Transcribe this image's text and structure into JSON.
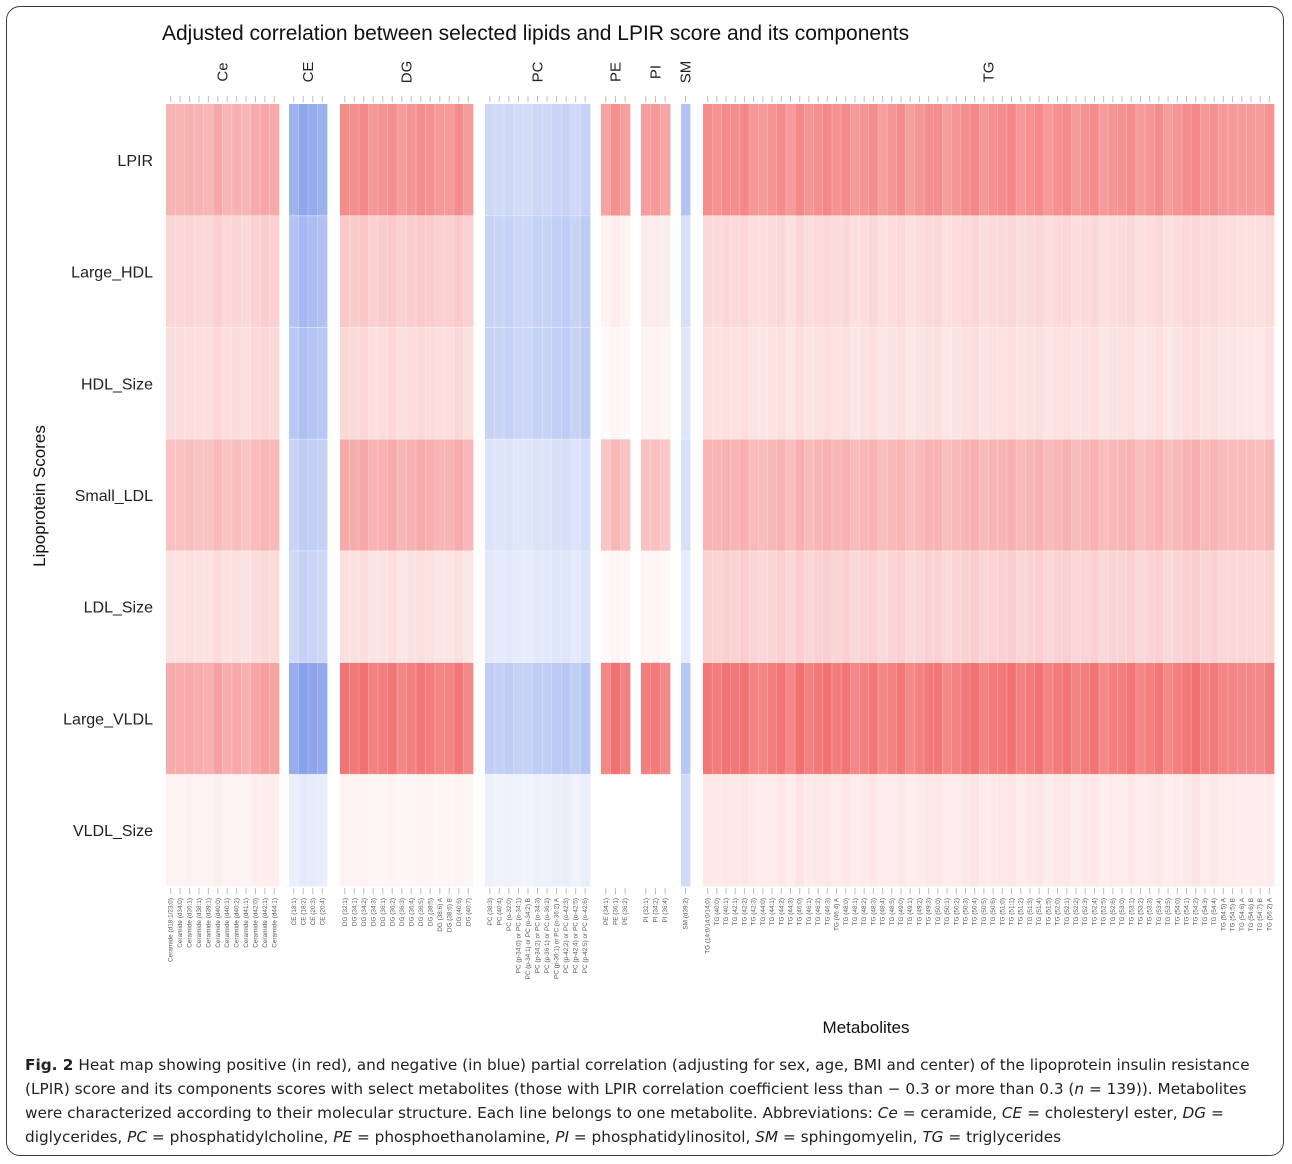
{
  "chart_data": {
    "type": "heatmap",
    "title": "Adjusted correlation between selected lipids and LPIR score and its components",
    "xlabel": "Metabolites",
    "ylabel": "Lipoprotein Scores",
    "rows": [
      "LPIR",
      "Large_HDL",
      "HDL_Size",
      "Small_LDL",
      "LDL_Size",
      "Large_VLDL",
      "VLDL_Size"
    ],
    "color_scale": {
      "negative": "#4a6fe0",
      "zero": "#ffffff",
      "positive": "#ee4a4a",
      "range": [
        -0.5,
        0.5
      ]
    },
    "groups": [
      {
        "name": "Ce",
        "metabolites": [
          "Ceramide (d18:1/23:0)",
          "Ceramide (d34:0)",
          "Ceramide (d36:1)",
          "Ceramide (d38:1)",
          "Ceramide (d39:1)",
          "Ceramide (d40:0)",
          "Ceramide (d40:1)",
          "Ceramide (d40:2)",
          "Ceramide (d41:1)",
          "Ceramide (d42:0)",
          "Ceramide (d42:1)",
          "Ceramide (d44:1)"
        ],
        "row_values": [
          0.22,
          0.12,
          0.1,
          0.18,
          0.09,
          0.24,
          0.04
        ]
      },
      {
        "name": "CE",
        "metabolites": [
          "CE (18:1)",
          "CE (18:2)",
          "CE (20:3)",
          "CE (20:4)"
        ],
        "row_values": [
          -0.28,
          -0.22,
          -0.2,
          -0.16,
          -0.14,
          -0.3,
          -0.06
        ]
      },
      {
        "name": "DG",
        "metabolites": [
          "DG (32:1)",
          "DG (34:1)",
          "DG (34:2)",
          "DG (34:3)",
          "DG (36:1)",
          "DG (36:2)",
          "DG (36:3)",
          "DG (36:4)",
          "DG (36:5)",
          "DG (38:5)",
          "DG (38:6) A",
          "DG (38:6) B",
          "DG (40:6)",
          "DG (40:7)"
        ],
        "row_values": [
          0.3,
          0.14,
          0.1,
          0.22,
          0.08,
          0.36,
          0.03
        ]
      },
      {
        "name": "PC",
        "metabolites": [
          "PC (38:3)",
          "PC (40:4)",
          "PC (o-32:0)",
          "PC (p-34:0) or PC (o-34:1)",
          "PC (p-34:1) or PC (o-34:2) B",
          "PC (p-34:2) or PC (o-34:3)",
          "PC (p-36:1) or PC (o-36:2)",
          "PC (p-36:1) or PC (o-36:2) A",
          "PC (p-42:2) or PC (o-42:3)",
          "PC (p-42:4) or PC (o-42:5)",
          "PC (p-42:5) or PC (o-42:6)"
        ],
        "row_values": [
          -0.14,
          -0.16,
          -0.16,
          -0.1,
          -0.08,
          -0.18,
          -0.05
        ]
      },
      {
        "name": "PE",
        "metabolites": [
          "PE (34:1)",
          "PE (36:1)",
          "PE (36:2)"
        ],
        "row_values": [
          0.28,
          0.04,
          0.02,
          0.18,
          0.02,
          0.36,
          0.0
        ]
      },
      {
        "name": "PI",
        "metabolites": [
          "PI (32:1)",
          "PI (34:2)",
          "PI (36:4)"
        ],
        "row_values": [
          0.26,
          0.05,
          0.03,
          0.16,
          0.02,
          0.34,
          0.0
        ]
      },
      {
        "name": "SM",
        "metabolites": [
          "SM (d39:2)"
        ],
        "row_values": [
          -0.2,
          -0.1,
          -0.08,
          -0.1,
          -0.06,
          -0.18,
          -0.12
        ]
      },
      {
        "name": "TG",
        "metabolites": [
          "TG (14:0/14:0/14:0)",
          "TG (40:0)",
          "TG (40:1)",
          "TG (42:1)",
          "TG (42:2)",
          "TG (42:3)",
          "TG (44:0)",
          "TG (44:1)",
          "TG (44:2)",
          "TG (44:3)",
          "TG (46:0)",
          "TG (46:1)",
          "TG (46:2)",
          "TG (46:3)",
          "TG (46:4) A",
          "TG (48:0)",
          "TG (48:1)",
          "TG (48:2)",
          "TG (48:3)",
          "TG (48:4)",
          "TG (48:5)",
          "TG (49:0)",
          "TG (49:1)",
          "TG (49:2)",
          "TG (49:3)",
          "TG (50:0)",
          "TG (50:1)",
          "TG (50:2)",
          "TG (50:3)",
          "TG (50:4)",
          "TG (50:5)",
          "TG (50:6)",
          "TG (51:0)",
          "TG (51:1)",
          "TG (51:2)",
          "TG (51:3)",
          "TG (51:4)",
          "TG (51:5)",
          "TG (52:0)",
          "TG (52:1)",
          "TG (52:2)",
          "TG (52:3)",
          "TG (52:4)",
          "TG (52:5)",
          "TG (52:6)",
          "TG (53:0)",
          "TG (53:1)",
          "TG (53:2)",
          "TG (53:3)",
          "TG (53:4)",
          "TG (53:5)",
          "TG (54:0)",
          "TG (54:1)",
          "TG (54:2)",
          "TG (54:3)",
          "TG (54:4)",
          "TG (54:5) A",
          "TG (54:5) B",
          "TG (54:6) A",
          "TG (54:6) B",
          "TG (54:7) B",
          "TG (56:2) A"
        ],
        "row_values": [
          0.3,
          0.1,
          0.08,
          0.2,
          0.12,
          0.36,
          0.06
        ]
      }
    ]
  },
  "caption": {
    "fig_label": "Fig. 2",
    "text": "Heat map showing positive (in red), and negative (in blue) partial correlation (adjusting for sex, age, BMI and center) of the lipoprotein insulin resistance (LPIR) score and its components scores with select metabolites (those with LPIR correlation coefficient less than − 0.3 or more than 0.3 (",
    "n_symbol": "n",
    "text2": " = 139)). Metabolites were characterized according to their molecular structure. Each line belongs to one metabolite. Abbreviations: ",
    "abbreviations": [
      {
        "abbr": "Ce",
        "def": " = ceramide, "
      },
      {
        "abbr": "CE",
        "def": " = cholesteryl ester, "
      },
      {
        "abbr": "DG",
        "def": " = diglycerides, "
      },
      {
        "abbr": "PC",
        "def": " = phosphatidylcholine, "
      },
      {
        "abbr": "PE",
        "def": " = phosphoethanolamine, "
      },
      {
        "abbr": "PI",
        "def": " = phosphatidylinositol, "
      },
      {
        "abbr": "SM",
        "def": " = sphingomyelin, "
      },
      {
        "abbr": "TG",
        "def": " = triglycerides"
      }
    ]
  }
}
